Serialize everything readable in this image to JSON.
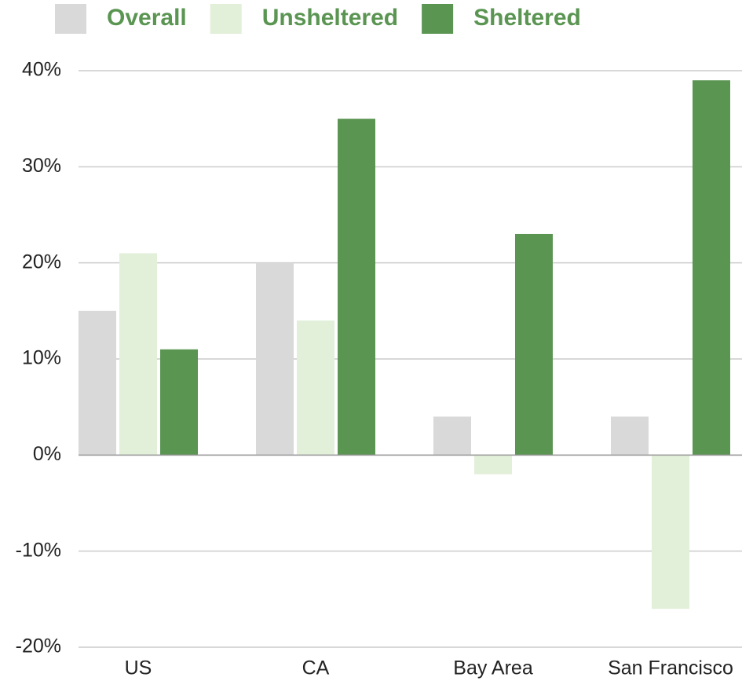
{
  "chart_data": {
    "type": "bar",
    "categories": [
      "US",
      "CA",
      "Bay Area",
      "San Francisco"
    ],
    "series": [
      {
        "name": "Overall",
        "color": "#d9d9d9",
        "values": [
          15,
          20,
          4,
          4
        ]
      },
      {
        "name": "Unsheltered",
        "color": "#e2efd9",
        "values": [
          21,
          14,
          -2,
          -16
        ]
      },
      {
        "name": "Sheltered",
        "color": "#5a9552",
        "values": [
          11,
          35,
          23,
          39
        ]
      }
    ],
    "ylim": [
      -20,
      40
    ],
    "yticks": [
      {
        "value": -20,
        "label": "-20%"
      },
      {
        "value": -10,
        "label": "-10%"
      },
      {
        "value": 0,
        "label": "0%"
      },
      {
        "value": 10,
        "label": "10%"
      },
      {
        "value": 20,
        "label": "20%"
      },
      {
        "value": 30,
        "label": "30%"
      },
      {
        "value": 40,
        "label": "40%"
      }
    ],
    "grid": true,
    "legend": "top"
  }
}
